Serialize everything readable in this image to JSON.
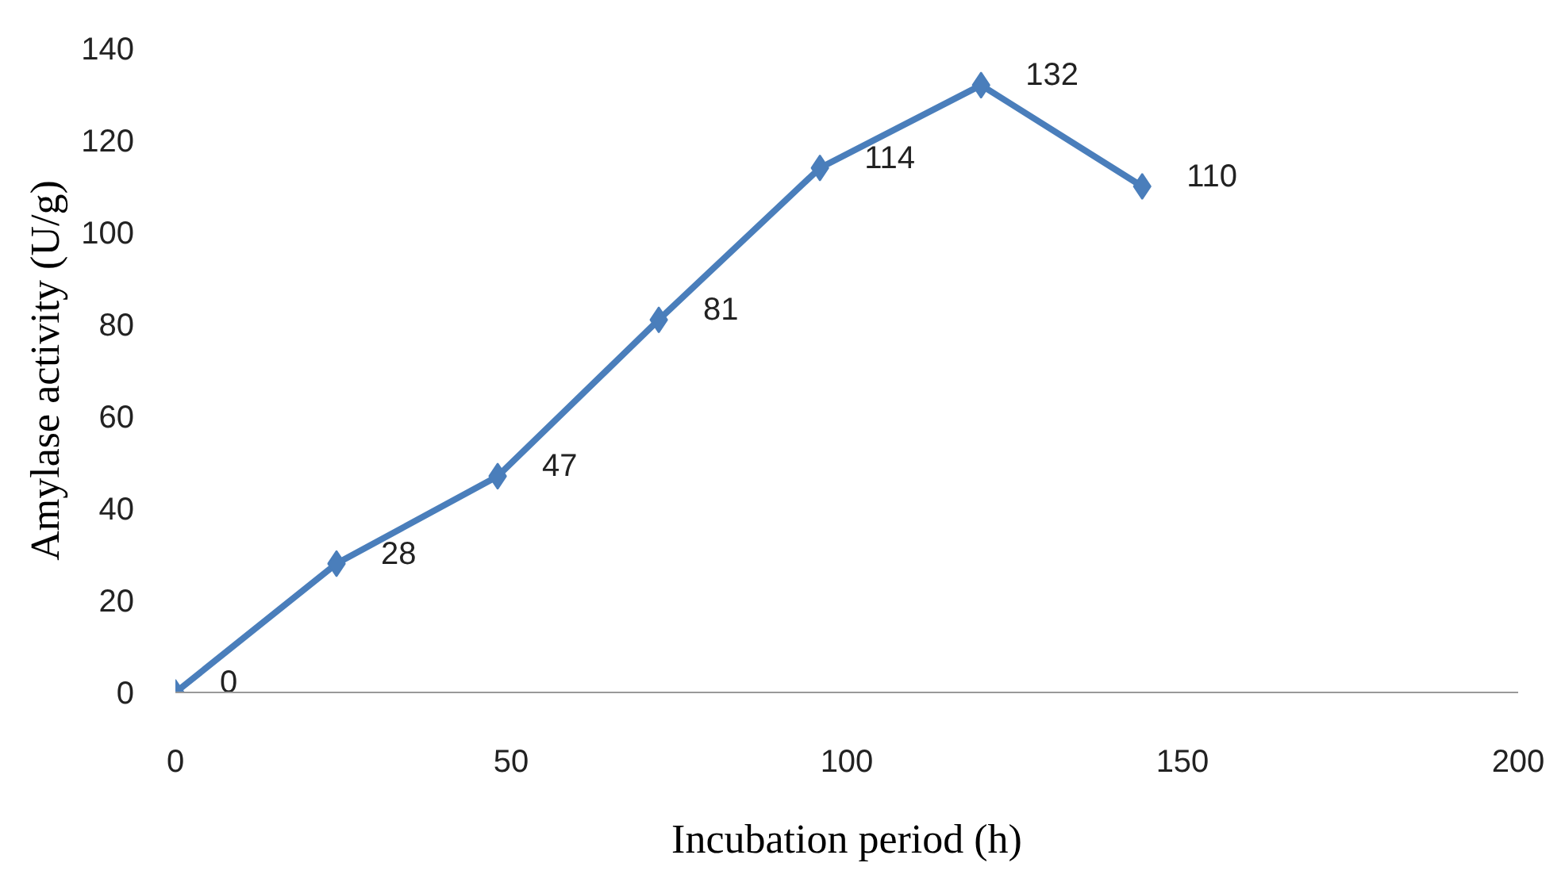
{
  "chart_data": {
    "type": "line",
    "xlabel": "Incubation period (h)",
    "ylabel": "Amylase activity (U/g)",
    "x": [
      0,
      24,
      48,
      72,
      96,
      120,
      144
    ],
    "series": [
      {
        "color": "#4a7ebb",
        "values": [
          0,
          28,
          47,
          81,
          114,
          132,
          110
        ]
      }
    ],
    "xlim": [
      0,
      200
    ],
    "xticks": [
      0,
      50,
      100,
      150,
      200
    ],
    "ylim": [
      0,
      140
    ],
    "yticks": [
      0,
      20,
      40,
      60,
      80,
      100,
      120,
      140
    ],
    "grid": false,
    "marker": "diamond",
    "line_style": "solid",
    "data_labels": true
  }
}
